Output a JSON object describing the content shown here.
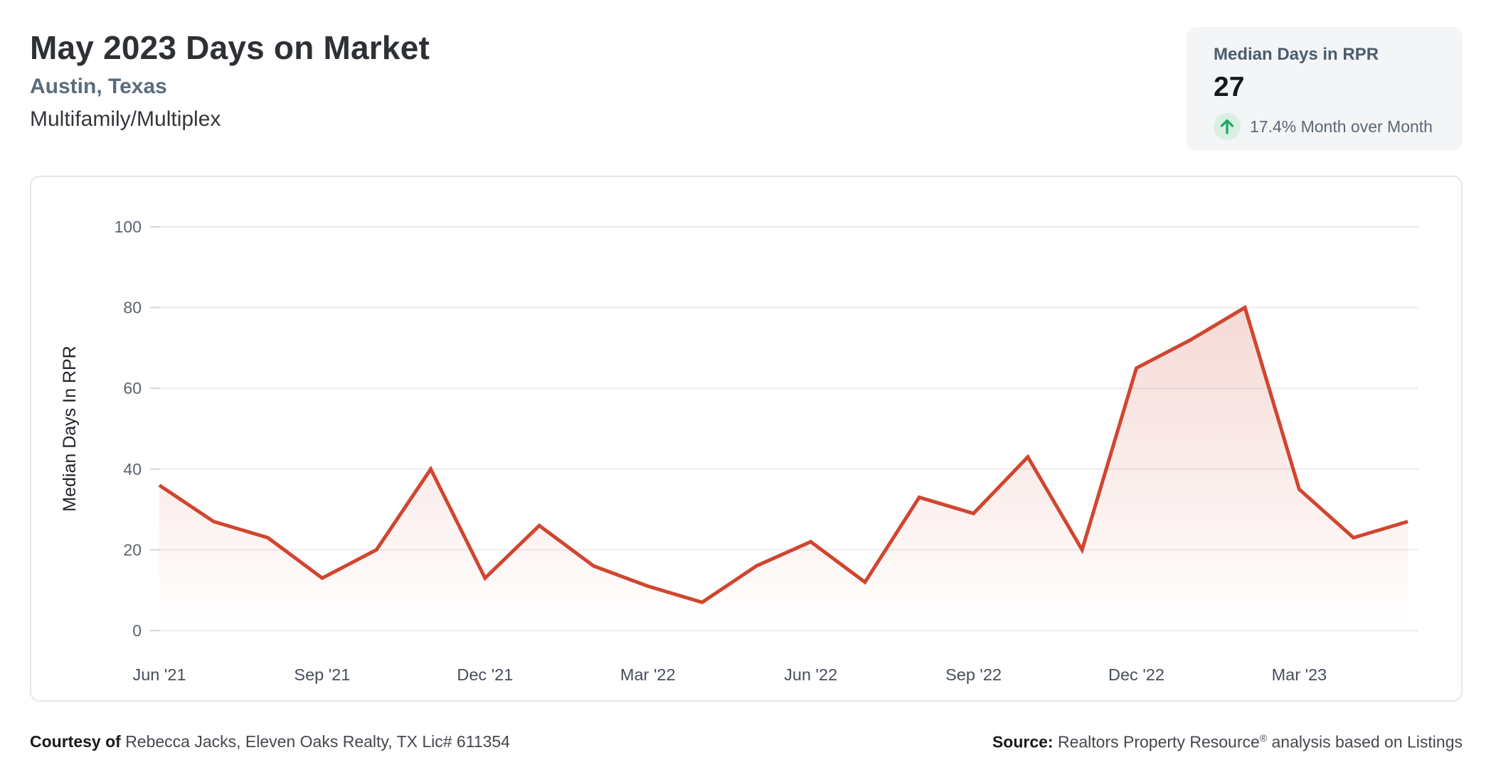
{
  "header": {
    "title": "May 2023 Days on Market",
    "subtitle": "Austin, Texas",
    "property_type": "Multifamily/Multiplex"
  },
  "stat_card": {
    "label": "Median Days in RPR",
    "value": "27",
    "change_text": "17.4% Month over Month",
    "trend_direction": "up",
    "trend_arrow_color": "#1ca862",
    "trend_badge_bg": "#d8f0e2"
  },
  "chart_data": {
    "type": "area",
    "title": "",
    "x": [
      "Jun '21",
      "Jul '21",
      "Aug '21",
      "Sep '21",
      "Oct '21",
      "Nov '21",
      "Dec '21",
      "Jan '22",
      "Feb '22",
      "Mar '22",
      "Apr '22",
      "May '22",
      "Jun '22",
      "Jul '22",
      "Aug '22",
      "Sep '22",
      "Oct '22",
      "Nov '22",
      "Dec '22",
      "Jan '23",
      "Feb '23",
      "Mar '23",
      "Apr '23",
      "May '23"
    ],
    "values": [
      36,
      27,
      23,
      13,
      20,
      40,
      13,
      26,
      16,
      11,
      7,
      16,
      22,
      12,
      33,
      29,
      43,
      20,
      65,
      72,
      80,
      35,
      23,
      27
    ],
    "x_tick_every": 3,
    "x_tick_labels": [
      "Jun '21",
      "Sep '21",
      "Dec '21",
      "Mar '22",
      "Jun '22",
      "Sep '22",
      "Dec '22",
      "Mar '23"
    ],
    "ylabel": "Median Days In RPR",
    "ylim": [
      0,
      100
    ],
    "yticks": [
      0,
      20,
      40,
      60,
      80,
      100
    ],
    "grid": true,
    "legend_position": "none",
    "line_color": "#d1452f",
    "area_top_opacity": 0.2,
    "gridline_color": "#eaebed",
    "tick_color": "#d2d6db"
  },
  "footer": {
    "courtesy_bold": "Courtesy of ",
    "courtesy_text": "Rebecca Jacks, Eleven Oaks Realty, TX Lic# 611354",
    "source_bold": "Source: ",
    "source_before_reg": "Realtors Property Resource",
    "source_reg_mark": "®",
    "source_after_reg": " analysis based on Listings"
  }
}
